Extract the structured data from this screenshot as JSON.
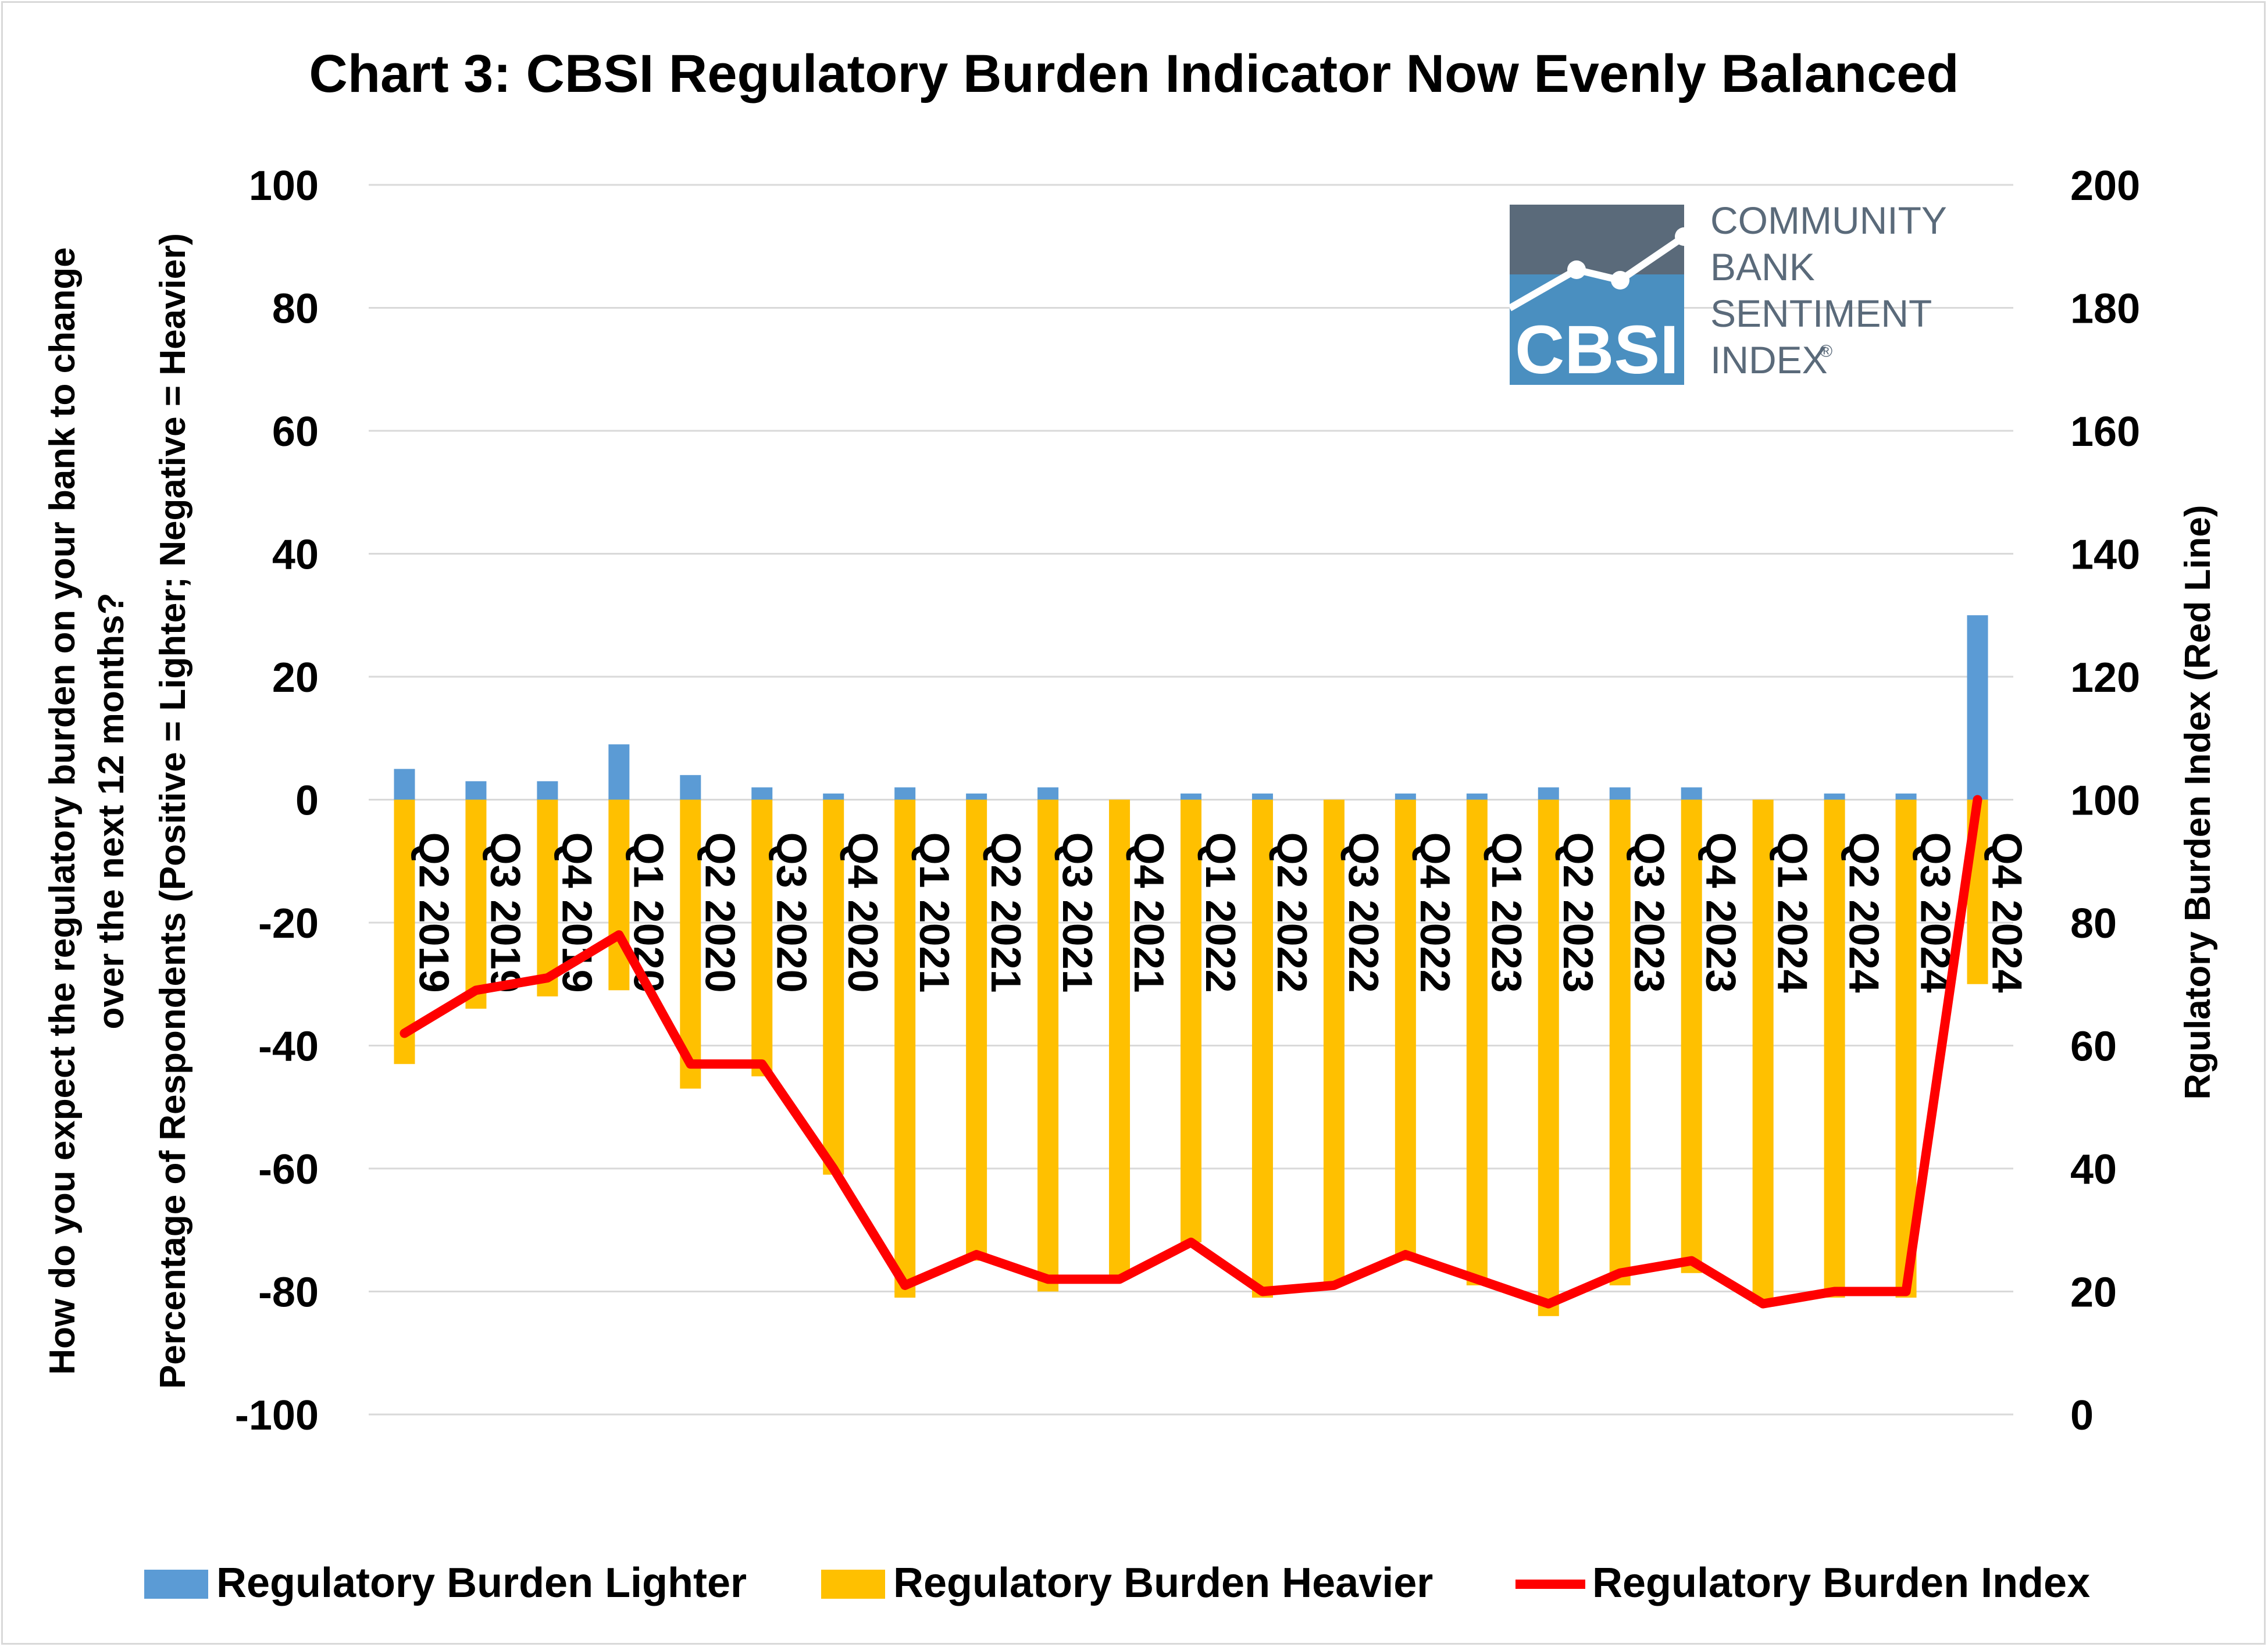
{
  "chart_data": {
    "type": "bar",
    "title": "Chart 3: CBSI Regulatory Burden Indicator Now Evenly Balanced",
    "ylabel_line1": "How do you expect the regulatory burden on your bank to change",
    "ylabel_line2": "over the next 12 months?",
    "ylabel_line3": "Percentage of Respondents (Positive = Lighter; Negative = Heavier)",
    "y2label": "Rgulatory Burden Index (Red Line)",
    "ylim": [
      -100,
      100
    ],
    "y2lim": [
      0,
      200
    ],
    "yticks": [
      "100",
      "80",
      "60",
      "40",
      "20",
      "0",
      "-20",
      "-40",
      "-60",
      "-80",
      "-100"
    ],
    "y2ticks": [
      "200",
      "180",
      "160",
      "140",
      "120",
      "100",
      "80",
      "60",
      "40",
      "20",
      "0"
    ],
    "grid": true,
    "legend_position": "bottom",
    "categories": [
      "Q2 2019",
      "Q3 2019",
      "Q4 2019",
      "Q1 2020",
      "Q2 2020",
      "Q3 2020",
      "Q4 2020",
      "Q1 2021",
      "Q2 2021",
      "Q3 2021",
      "Q4 2021",
      "Q1 2022",
      "Q2 2022",
      "Q3 2022",
      "Q4 2022",
      "Q1 2023",
      "Q2 2023",
      "Q3 2023",
      "Q4 2023",
      "Q1 2024",
      "Q2 2024",
      "Q3 2024",
      "Q4 2024"
    ],
    "series": [
      {
        "name": "Regulatory Burden Lighter",
        "kind": "bar",
        "axis": "left",
        "color": "#5b9bd5",
        "values": [
          5,
          3,
          3,
          9,
          4,
          2,
          1,
          2,
          1,
          2,
          0,
          1,
          1,
          0,
          1,
          1,
          2,
          2,
          2,
          0,
          1,
          1,
          30
        ]
      },
      {
        "name": "Regulatory Burden Heavier",
        "kind": "bar",
        "axis": "left",
        "color": "#ffc000",
        "values": [
          -43,
          -34,
          -32,
          -31,
          -47,
          -45,
          -61,
          -81,
          -75,
          -80,
          -78,
          -72,
          -81,
          -79,
          -75,
          -79,
          -84,
          -79,
          -77,
          -82,
          -81,
          -81,
          -30
        ]
      },
      {
        "name": "Regulatory Burden Index",
        "kind": "line",
        "axis": "right",
        "color": "#ff0000",
        "values": [
          62,
          69,
          71,
          78,
          57,
          57,
          40,
          21,
          26,
          22,
          22,
          28,
          20,
          21,
          26,
          22,
          18,
          23,
          25,
          18,
          20,
          20,
          100
        ]
      }
    ]
  },
  "logo": {
    "abbr": "CBSI",
    "line1": "COMMUNITY",
    "line2": "BANK",
    "line3": "SENTIMENT",
    "line4": "INDEX",
    "mark": "®",
    "color_dark": "#5a6a7a",
    "color_blue": "#4a8fc0"
  }
}
